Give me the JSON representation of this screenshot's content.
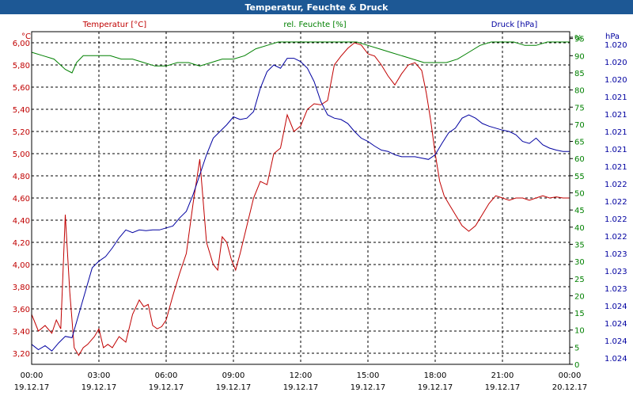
{
  "chart_data": {
    "type": "line",
    "title": "Temperatur, Feuchte & Druck",
    "x_time_labels": [
      "00:00",
      "03:00",
      "06:00",
      "09:00",
      "12:00",
      "15:00",
      "18:00",
      "21:00",
      "00:00"
    ],
    "x_date_labels": [
      "19.12.17",
      "19.12.17",
      "19.12.17",
      "19.12.17",
      "19.12.17",
      "19.12.17",
      "19.12.17",
      "19.12.17",
      "20.12.17"
    ],
    "x_range_hours": [
      0,
      24
    ],
    "grid": true,
    "axes": {
      "temperature": {
        "label": "Temperatur [°C]",
        "unit": "°C",
        "color": "#c00000",
        "range": [
          3.1,
          6.1
        ],
        "ticks": [
          "3,20",
          "3,40",
          "3,60",
          "3,80",
          "4,00",
          "4,20",
          "4,40",
          "4,60",
          "4,80",
          "5,00",
          "5,20",
          "5,40",
          "5,60",
          "5,80",
          "6,00"
        ]
      },
      "humidity": {
        "label": "rel. Feuchte [%]",
        "unit": "%",
        "color": "#008000",
        "range": [
          0,
          97
        ],
        "ticks": [
          "0",
          "5",
          "10",
          "15",
          "20",
          "25",
          "30",
          "35",
          "40",
          "45",
          "50",
          "55",
          "60",
          "65",
          "70",
          "75",
          "80",
          "85",
          "90",
          "95",
          "%"
        ]
      },
      "pressure": {
        "label": "Druck [hPa]",
        "unit": "hPa",
        "color": "#0000a0",
        "range": [
          1.0195,
          1.0245
        ],
        "ticks": [
          "1.020",
          "1.020",
          "1.020",
          "1.021",
          "1.021",
          "1.021",
          "1.021",
          "1.021",
          "1.022",
          "1.022",
          "1.022",
          "1.022",
          "1.023",
          "1.023",
          "1.023",
          "1.024",
          "1.024",
          "1.024",
          "1.024"
        ]
      }
    },
    "series": [
      {
        "name": "Temperatur [°C]",
        "axis": "temperature",
        "color": "#c00000",
        "x": [
          0,
          0.3,
          0.6,
          0.9,
          1.1,
          1.3,
          1.5,
          1.7,
          1.9,
          2.1,
          2.3,
          2.5,
          2.8,
          3.0,
          3.2,
          3.4,
          3.6,
          3.9,
          4.2,
          4.5,
          4.8,
          5.0,
          5.2,
          5.4,
          5.6,
          5.8,
          6.0,
          6.3,
          6.6,
          6.9,
          7.2,
          7.5,
          7.8,
          8.1,
          8.3,
          8.5,
          8.7,
          8.9,
          9.1,
          9.3,
          9.6,
          9.9,
          10.2,
          10.5,
          10.8,
          11.1,
          11.4,
          11.7,
          12.0,
          12.3,
          12.6,
          12.9,
          13.2,
          13.5,
          13.8,
          14.1,
          14.4,
          14.7,
          15.0,
          15.3,
          15.6,
          15.9,
          16.2,
          16.5,
          16.8,
          17.1,
          17.4,
          17.6,
          17.8,
          18.0,
          18.2,
          18.4,
          18.6,
          18.9,
          19.2,
          19.5,
          19.8,
          20.1,
          20.4,
          20.7,
          21.0,
          21.3,
          21.6,
          21.9,
          22.2,
          22.5,
          22.8,
          23.1,
          23.4,
          23.7,
          24.0
        ],
        "values": [
          3.55,
          3.4,
          3.45,
          3.38,
          3.5,
          3.42,
          4.45,
          3.75,
          3.25,
          3.18,
          3.25,
          3.28,
          3.35,
          3.42,
          3.25,
          3.28,
          3.25,
          3.35,
          3.3,
          3.55,
          3.68,
          3.62,
          3.64,
          3.45,
          3.42,
          3.44,
          3.5,
          3.72,
          3.92,
          4.1,
          4.55,
          4.95,
          4.2,
          4.0,
          3.95,
          4.25,
          4.2,
          4.05,
          3.95,
          4.1,
          4.35,
          4.6,
          4.75,
          4.72,
          5.0,
          5.05,
          5.35,
          5.2,
          5.25,
          5.4,
          5.45,
          5.44,
          5.48,
          5.8,
          5.88,
          5.95,
          6.0,
          5.98,
          5.9,
          5.88,
          5.8,
          5.7,
          5.62,
          5.72,
          5.8,
          5.82,
          5.75,
          5.55,
          5.3,
          5.0,
          4.75,
          4.62,
          4.55,
          4.45,
          4.35,
          4.3,
          4.35,
          4.45,
          4.55,
          4.62,
          4.6,
          4.58,
          4.6,
          4.6,
          4.58,
          4.6,
          4.62,
          4.6,
          4.61,
          4.6,
          4.6
        ]
      },
      {
        "name": "rel. Feuchte [%]",
        "axis": "humidity",
        "color": "#008000",
        "x": [
          0,
          0.5,
          1.0,
          1.5,
          1.8,
          2.0,
          2.3,
          2.6,
          3.0,
          3.5,
          4.0,
          4.5,
          5.0,
          5.5,
          6.0,
          6.5,
          7.0,
          7.5,
          8.0,
          8.5,
          9.0,
          9.5,
          10.0,
          10.5,
          11.0,
          11.5,
          12.0,
          12.5,
          13.0,
          13.5,
          14.0,
          14.5,
          15.0,
          15.5,
          16.0,
          16.5,
          17.0,
          17.5,
          18.0,
          18.5,
          19.0,
          19.5,
          20.0,
          20.5,
          21.0,
          21.5,
          22.0,
          22.5,
          23.0,
          23.5,
          24.0
        ],
        "values": [
          91,
          90,
          89,
          86,
          85,
          88,
          90,
          90,
          90,
          90,
          89,
          89,
          88,
          87,
          87,
          88,
          88,
          87,
          88,
          89,
          89,
          90,
          92,
          93,
          94,
          94,
          94,
          94,
          94,
          94,
          94,
          94,
          93,
          92,
          91,
          90,
          89,
          88,
          88,
          88,
          89,
          91,
          93,
          94,
          94,
          94,
          93,
          93,
          94,
          94,
          94
        ]
      },
      {
        "name": "Druck [hPa]",
        "axis": "pressure",
        "color": "#0000a0",
        "x": [
          0,
          0.3,
          0.6,
          0.9,
          1.2,
          1.5,
          1.8,
          2.1,
          2.4,
          2.7,
          3.0,
          3.3,
          3.6,
          3.9,
          4.2,
          4.5,
          4.8,
          5.1,
          5.4,
          5.7,
          6.0,
          6.3,
          6.6,
          6.9,
          7.2,
          7.5,
          7.8,
          8.1,
          8.4,
          8.7,
          9.0,
          9.3,
          9.6,
          9.9,
          10.2,
          10.5,
          10.8,
          11.1,
          11.4,
          11.7,
          12.0,
          12.3,
          12.6,
          12.9,
          13.2,
          13.5,
          13.8,
          14.1,
          14.4,
          14.7,
          15.0,
          15.3,
          15.6,
          15.9,
          16.2,
          16.5,
          16.8,
          17.1,
          17.4,
          17.7,
          18.0,
          18.3,
          18.6,
          18.9,
          19.2,
          19.5,
          19.8,
          20.1,
          20.4,
          20.7,
          21.0,
          21.3,
          21.6,
          21.9,
          22.2,
          22.5,
          22.8,
          23.1,
          23.4,
          23.7,
          24.0
        ],
        "values": [
          1.0198,
          1.01972,
          1.01978,
          1.0197,
          1.01982,
          1.01992,
          1.0199,
          1.02025,
          1.0206,
          1.02095,
          1.02105,
          1.02112,
          1.02125,
          1.0214,
          1.02152,
          1.02148,
          1.02152,
          1.02151,
          1.02152,
          1.02152,
          1.02155,
          1.02158,
          1.0217,
          1.0218,
          1.02205,
          1.02235,
          1.02265,
          1.0229,
          1.023,
          1.0231,
          1.02322,
          1.02318,
          1.0232,
          1.0233,
          1.02365,
          1.0239,
          1.024,
          1.02395,
          1.0241,
          1.0241,
          1.02405,
          1.02395,
          1.02375,
          1.02345,
          1.02325,
          1.0232,
          1.02318,
          1.02312,
          1.023,
          1.0229,
          1.02285,
          1.02278,
          1.02272,
          1.0227,
          1.02265,
          1.02262,
          1.02262,
          1.02262,
          1.0226,
          1.02258,
          1.02265,
          1.02282,
          1.02298,
          1.02305,
          1.0232,
          1.02325,
          1.0232,
          1.02312,
          1.02308,
          1.02305,
          1.02302,
          1.023,
          1.02295,
          1.02285,
          1.02282,
          1.0229,
          1.0228,
          1.02275,
          1.02272,
          1.0227,
          1.0227
        ]
      }
    ]
  }
}
